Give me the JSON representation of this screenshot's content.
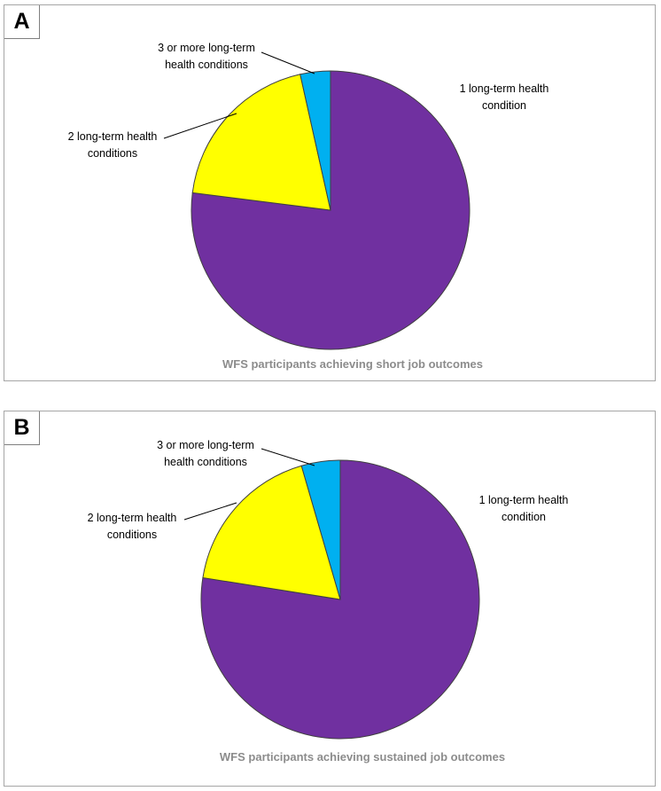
{
  "panels": [
    {
      "letter": "A"
    },
    {
      "letter": "B"
    }
  ],
  "chart_data": [
    {
      "type": "pie",
      "title": "WFS participants achieving short job outcomes",
      "slices": [
        {
          "label": "1 long-term health condition",
          "label_lines": [
            "1 long-term health",
            "condition"
          ],
          "value": 77,
          "color": "#7030a0"
        },
        {
          "label": "2 long-term health conditions",
          "label_lines": [
            "2 long-term health",
            "conditions"
          ],
          "value": 19.5,
          "color": "#ffff00"
        },
        {
          "label": "3 or more long-term health conditions",
          "label_lines": [
            "3 or more long-term",
            "health conditions"
          ],
          "value": 3.5,
          "color": "#00b0f0"
        }
      ]
    },
    {
      "type": "pie",
      "title": "WFS participants achieving sustained job outcomes",
      "slices": [
        {
          "label": "1 long-term health condition",
          "label_lines": [
            "1 long-term health",
            "condition"
          ],
          "value": 77.5,
          "color": "#7030a0"
        },
        {
          "label": "2 long-term health conditions",
          "label_lines": [
            "2 long-term health",
            "conditions"
          ],
          "value": 18,
          "color": "#ffff00"
        },
        {
          "label": "3 or more long-term health conditions",
          "label_lines": [
            "3 or more long-term",
            "health conditions"
          ],
          "value": 4.5,
          "color": "#00b0f0"
        }
      ]
    }
  ]
}
